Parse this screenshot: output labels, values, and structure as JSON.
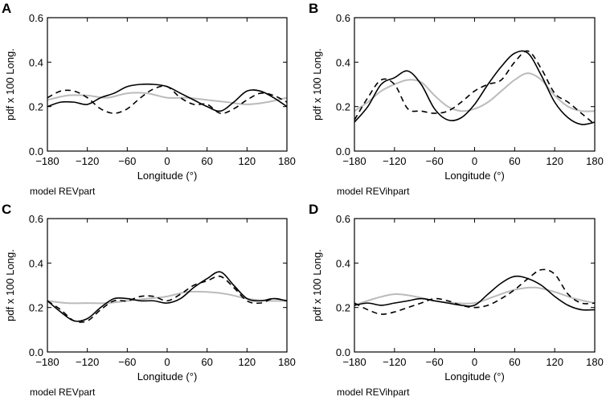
{
  "chart_data": [
    {
      "type": "line",
      "panel": "A",
      "model_label": "model REVpart",
      "xlabel": "Longitude (°)",
      "ylabel": "pdf x 100 Long.",
      "xlim": [
        -180,
        180
      ],
      "ylim": [
        0,
        0.6
      ],
      "xticks": [
        "-180",
        "-120",
        "-60",
        "0",
        "60",
        "120",
        "180"
      ],
      "yticks": [
        "0.0",
        "0.2",
        "0.4",
        "0.6"
      ],
      "series": [
        {
          "name": "solid",
          "color": "#000000",
          "dash": "",
          "x": [
            -180,
            -160,
            -140,
            -120,
            -100,
            -80,
            -60,
            -40,
            -20,
            0,
            20,
            40,
            60,
            80,
            100,
            120,
            140,
            160,
            180
          ],
          "y": [
            0.2,
            0.22,
            0.22,
            0.21,
            0.24,
            0.26,
            0.29,
            0.3,
            0.3,
            0.29,
            0.26,
            0.23,
            0.2,
            0.18,
            0.22,
            0.27,
            0.27,
            0.24,
            0.2
          ]
        },
        {
          "name": "dashed",
          "color": "#000000",
          "dash": "7,5",
          "x": [
            -180,
            -160,
            -140,
            -120,
            -100,
            -80,
            -60,
            -40,
            -20,
            0,
            20,
            40,
            60,
            80,
            100,
            120,
            140,
            160,
            180
          ],
          "y": [
            0.24,
            0.27,
            0.27,
            0.24,
            0.19,
            0.17,
            0.19,
            0.24,
            0.28,
            0.29,
            0.24,
            0.21,
            0.21,
            0.17,
            0.19,
            0.23,
            0.26,
            0.25,
            0.22
          ]
        },
        {
          "name": "gray",
          "color": "#bbbbbb",
          "dash": "",
          "x": [
            -180,
            -150,
            -120,
            -90,
            -60,
            -30,
            0,
            30,
            60,
            90,
            120,
            150,
            180
          ],
          "y": [
            0.23,
            0.25,
            0.25,
            0.24,
            0.26,
            0.26,
            0.24,
            0.24,
            0.23,
            0.22,
            0.21,
            0.22,
            0.24
          ]
        }
      ]
    },
    {
      "type": "line",
      "panel": "B",
      "model_label": "model REVihpart",
      "xlabel": "Longitude (°)",
      "ylabel": "pdf x 100 Long.",
      "xlim": [
        -180,
        180
      ],
      "ylim": [
        0,
        0.6
      ],
      "xticks": [
        "-180",
        "-120",
        "-60",
        "0",
        "60",
        "120",
        "180"
      ],
      "yticks": [
        "0.0",
        "0.2",
        "0.4",
        "0.6"
      ],
      "series": [
        {
          "name": "solid",
          "color": "#000000",
          "dash": "",
          "x": [
            -180,
            -160,
            -140,
            -120,
            -100,
            -80,
            -60,
            -40,
            -20,
            0,
            20,
            40,
            60,
            80,
            100,
            120,
            140,
            160,
            180
          ],
          "y": [
            0.13,
            0.2,
            0.3,
            0.33,
            0.36,
            0.3,
            0.19,
            0.14,
            0.15,
            0.21,
            0.3,
            0.38,
            0.44,
            0.44,
            0.34,
            0.22,
            0.15,
            0.12,
            0.13
          ]
        },
        {
          "name": "dashed",
          "color": "#000000",
          "dash": "7,5",
          "x": [
            -180,
            -160,
            -140,
            -120,
            -100,
            -80,
            -60,
            -40,
            -20,
            0,
            20,
            40,
            60,
            80,
            100,
            120,
            140,
            160,
            180
          ],
          "y": [
            0.14,
            0.24,
            0.32,
            0.3,
            0.19,
            0.18,
            0.17,
            0.18,
            0.22,
            0.27,
            0.3,
            0.32,
            0.4,
            0.45,
            0.37,
            0.26,
            0.22,
            0.17,
            0.12
          ]
        },
        {
          "name": "gray",
          "color": "#bbbbbb",
          "dash": "",
          "x": [
            -180,
            -160,
            -140,
            -120,
            -100,
            -80,
            -60,
            -40,
            -20,
            0,
            20,
            40,
            60,
            80,
            100,
            120,
            140,
            160,
            180
          ],
          "y": [
            0.18,
            0.22,
            0.27,
            0.3,
            0.32,
            0.31,
            0.25,
            0.2,
            0.18,
            0.19,
            0.22,
            0.27,
            0.32,
            0.35,
            0.32,
            0.25,
            0.2,
            0.18,
            0.18
          ]
        }
      ]
    },
    {
      "type": "line",
      "panel": "C",
      "model_label": "model REVpart",
      "xlabel": "Longitude (°)",
      "ylabel": "pdf x 100 Long.",
      "xlim": [
        -180,
        180
      ],
      "ylim": [
        0,
        0.6
      ],
      "xticks": [
        "-180",
        "-120",
        "-60",
        "0",
        "60",
        "120",
        "180"
      ],
      "yticks": [
        "0.0",
        "0.2",
        "0.4",
        "0.6"
      ],
      "series": [
        {
          "name": "solid",
          "color": "#000000",
          "dash": "",
          "x": [
            -180,
            -160,
            -140,
            -120,
            -100,
            -80,
            -60,
            -40,
            -20,
            0,
            20,
            40,
            60,
            80,
            100,
            120,
            140,
            160,
            180
          ],
          "y": [
            0.23,
            0.18,
            0.14,
            0.15,
            0.2,
            0.24,
            0.24,
            0.23,
            0.23,
            0.22,
            0.24,
            0.29,
            0.33,
            0.36,
            0.3,
            0.24,
            0.23,
            0.24,
            0.23
          ]
        },
        {
          "name": "dashed",
          "color": "#000000",
          "dash": "7,5",
          "x": [
            -180,
            -160,
            -140,
            -120,
            -100,
            -80,
            -60,
            -40,
            -20,
            0,
            20,
            40,
            60,
            80,
            100,
            120,
            140,
            160,
            180
          ],
          "y": [
            0.23,
            0.19,
            0.14,
            0.14,
            0.19,
            0.23,
            0.23,
            0.25,
            0.25,
            0.23,
            0.26,
            0.3,
            0.32,
            0.34,
            0.29,
            0.23,
            0.22,
            0.24,
            0.23
          ]
        },
        {
          "name": "gray",
          "color": "#bbbbbb",
          "dash": "",
          "x": [
            -180,
            -150,
            -120,
            -90,
            -60,
            -30,
            0,
            30,
            60,
            90,
            120,
            150,
            180
          ],
          "y": [
            0.23,
            0.22,
            0.22,
            0.22,
            0.23,
            0.24,
            0.25,
            0.27,
            0.27,
            0.26,
            0.24,
            0.23,
            0.23
          ]
        }
      ]
    },
    {
      "type": "line",
      "panel": "D",
      "model_label": "model REVihpart",
      "xlabel": "Longitude (°)",
      "ylabel": "pdf x 100 Long.",
      "xlim": [
        -180,
        180
      ],
      "ylim": [
        0,
        0.6
      ],
      "xticks": [
        "-180",
        "-120",
        "-60",
        "0",
        "60",
        "120",
        "180"
      ],
      "yticks": [
        "0.0",
        "0.2",
        "0.4",
        "0.6"
      ],
      "series": [
        {
          "name": "solid",
          "color": "#000000",
          "dash": "",
          "x": [
            -180,
            -160,
            -140,
            -120,
            -100,
            -80,
            -60,
            -40,
            -20,
            0,
            20,
            40,
            60,
            80,
            100,
            120,
            140,
            160,
            180
          ],
          "y": [
            0.21,
            0.22,
            0.21,
            0.22,
            0.23,
            0.24,
            0.23,
            0.22,
            0.21,
            0.21,
            0.26,
            0.31,
            0.34,
            0.33,
            0.3,
            0.25,
            0.21,
            0.19,
            0.19
          ]
        },
        {
          "name": "dashed",
          "color": "#000000",
          "dash": "7,5",
          "x": [
            -180,
            -160,
            -140,
            -120,
            -100,
            -80,
            -60,
            -40,
            -20,
            0,
            20,
            40,
            60,
            80,
            100,
            120,
            140,
            160,
            180
          ],
          "y": [
            0.22,
            0.19,
            0.17,
            0.18,
            0.2,
            0.22,
            0.24,
            0.23,
            0.21,
            0.2,
            0.21,
            0.24,
            0.28,
            0.33,
            0.37,
            0.35,
            0.26,
            0.22,
            0.22
          ]
        },
        {
          "name": "gray",
          "color": "#bbbbbb",
          "dash": "",
          "x": [
            -180,
            -150,
            -120,
            -90,
            -60,
            -30,
            0,
            30,
            60,
            90,
            120,
            150,
            180
          ],
          "y": [
            0.21,
            0.24,
            0.26,
            0.25,
            0.23,
            0.22,
            0.22,
            0.25,
            0.28,
            0.29,
            0.27,
            0.24,
            0.22
          ]
        }
      ]
    }
  ]
}
